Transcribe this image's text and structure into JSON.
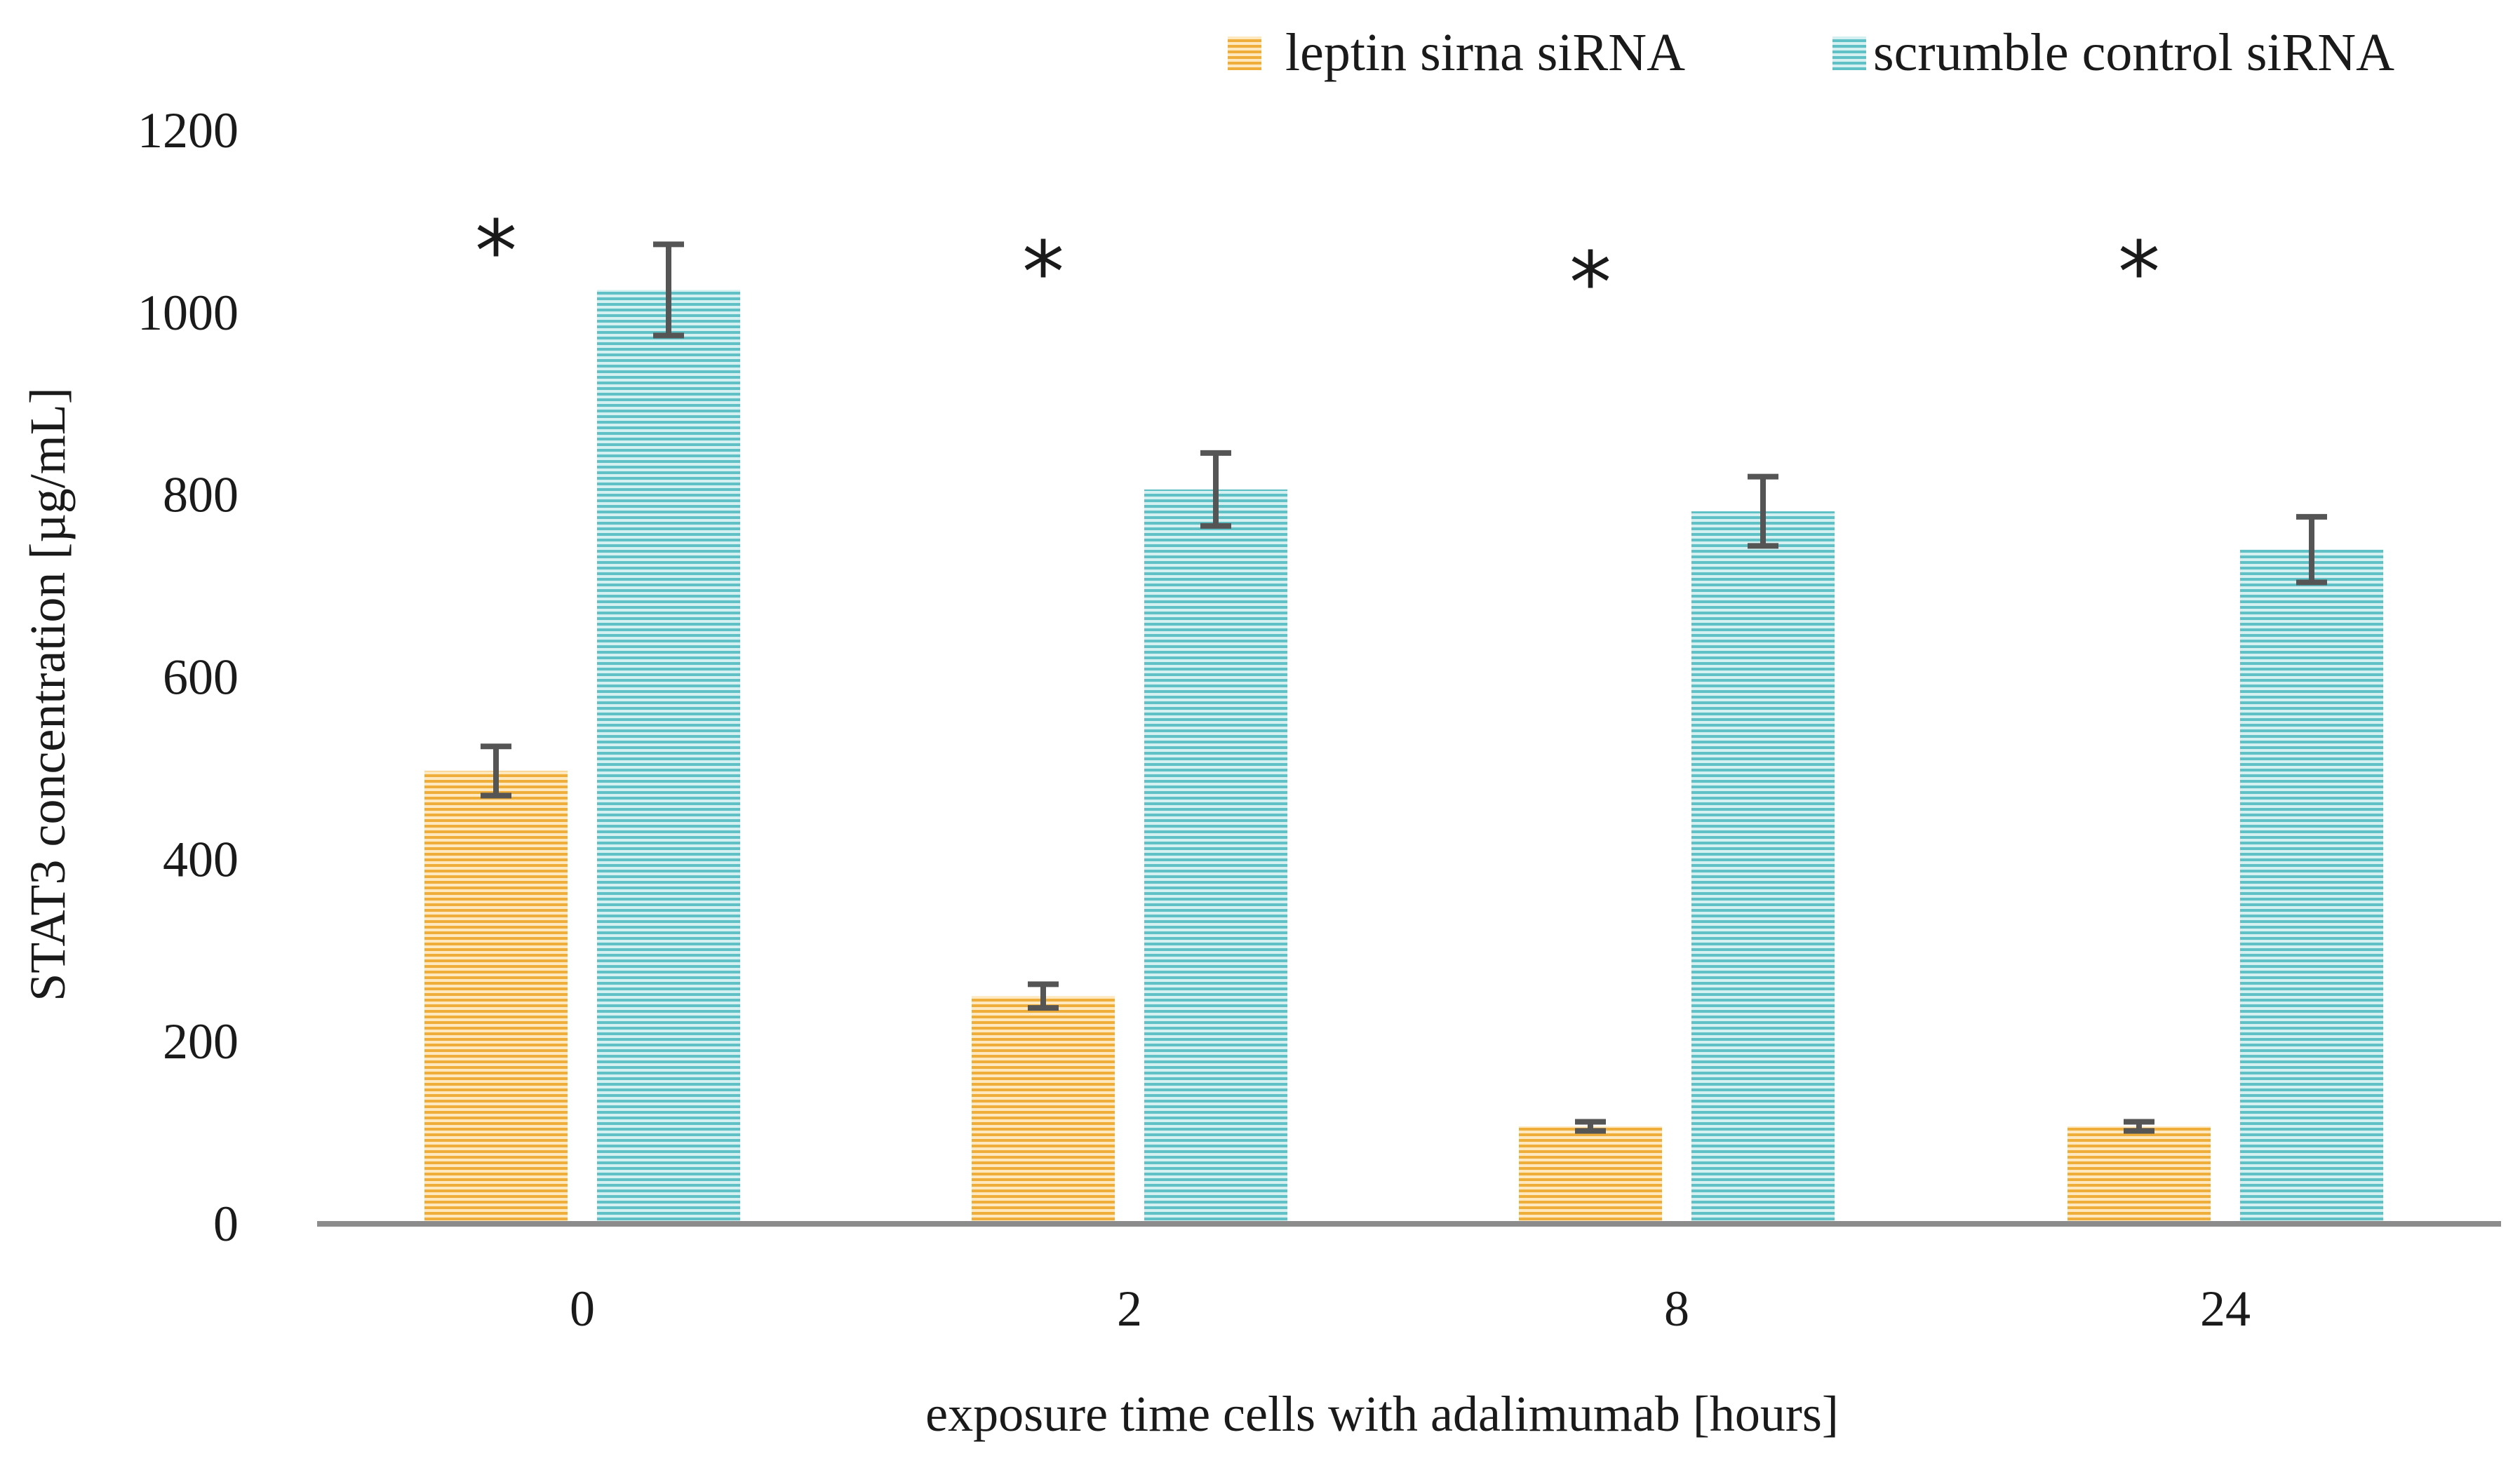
{
  "chart_data": {
    "type": "bar",
    "title": "",
    "xlabel": "exposure time cells with adalimumab [hours]",
    "ylabel": "STAT3 concentration [µg/mL]",
    "ylim": [
      0,
      1200
    ],
    "yticks": [
      0,
      200,
      400,
      600,
      800,
      1000,
      1200
    ],
    "categories": [
      "0",
      "2",
      "8",
      "24"
    ],
    "series": [
      {
        "name": "leptin sirna siRNA",
        "color": "#f0b040",
        "values": [
          497,
          250,
          107,
          107
        ],
        "errors": [
          27,
          13,
          5,
          5
        ]
      },
      {
        "name": "scrumble control siRNA",
        "color": "#6fc6cc",
        "values": [
          1025,
          806,
          782,
          740
        ],
        "errors": [
          50,
          40,
          38,
          36
        ]
      }
    ],
    "annotations": [
      "*",
      "*",
      "*",
      "*"
    ],
    "legend_position": "top-right"
  }
}
